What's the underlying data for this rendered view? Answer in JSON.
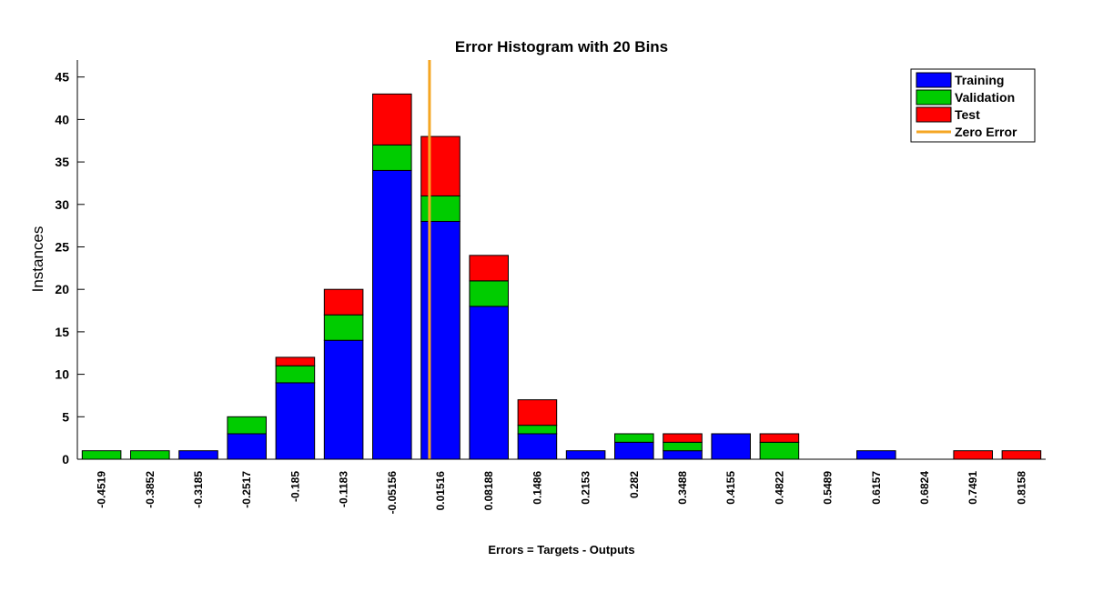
{
  "chart_data": {
    "type": "bar",
    "stacked": true,
    "title": "Error Histogram with 20 Bins",
    "xlabel": "Errors = Targets - Outputs",
    "ylabel": "Instances",
    "categories": [
      "-0.4519",
      "-0.3852",
      "-0.3185",
      "-0.2517",
      "-0.185",
      "-0.1183",
      "-0.05156",
      "0.01516",
      "0.08188",
      "0.1486",
      "0.2153",
      "0.282",
      "0.3488",
      "0.4155",
      "0.4822",
      "0.5489",
      "0.6157",
      "0.6824",
      "0.7491",
      "0.8158"
    ],
    "series": [
      {
        "name": "Training",
        "color": "#0000ff",
        "values": [
          0,
          0,
          1,
          3,
          9,
          14,
          34,
          28,
          18,
          3,
          1,
          2,
          1,
          3,
          0,
          0,
          1,
          0,
          0,
          0
        ]
      },
      {
        "name": "Validation",
        "color": "#00cc00",
        "values": [
          1,
          1,
          0,
          2,
          2,
          3,
          3,
          3,
          3,
          1,
          0,
          1,
          1,
          0,
          2,
          0,
          0,
          0,
          0,
          0
        ]
      },
      {
        "name": "Test",
        "color": "#ff0000",
        "values": [
          0,
          0,
          0,
          0,
          1,
          3,
          6,
          7,
          3,
          3,
          0,
          0,
          1,
          0,
          1,
          0,
          0,
          0,
          1,
          1
        ]
      }
    ],
    "zero_error": {
      "name": "Zero Error",
      "color": "#f5a623",
      "x": 0
    },
    "ylim": [
      0,
      47
    ],
    "yticks": [
      0,
      5,
      10,
      15,
      20,
      25,
      30,
      35,
      40,
      45
    ],
    "legend_position": "top-right",
    "grid": false
  }
}
